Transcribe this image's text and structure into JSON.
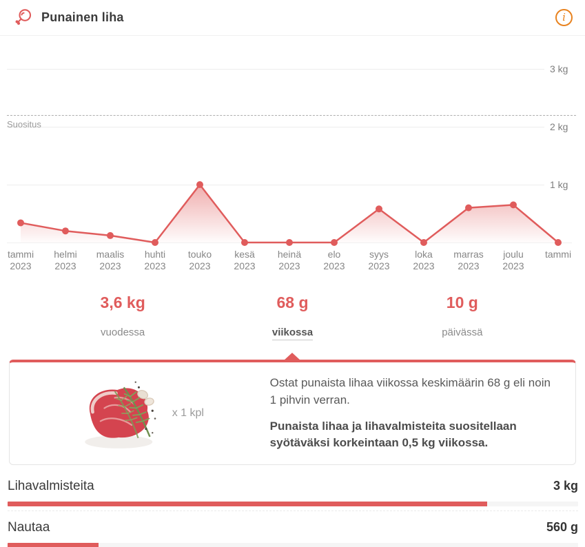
{
  "header": {
    "title": "Punainen liha"
  },
  "colors": {
    "accent_red": "#e05c5c",
    "info_orange": "#e8821e",
    "grid_gray": "#ededed",
    "reference_dash_gray": "#adadad"
  },
  "chart_data": {
    "type": "line",
    "title": "Punainen liha (red meat purchases per month)",
    "x": [
      "tammi 2023",
      "helmi 2023",
      "maalis 2023",
      "huhti 2023",
      "touko 2023",
      "kesä 2023",
      "heinä 2023",
      "elo 2023",
      "syys 2023",
      "loka 2023",
      "marras 2023",
      "joulu 2023",
      "tammi"
    ],
    "x_labels": [
      {
        "month": "tammi",
        "year": "2023"
      },
      {
        "month": "helmi",
        "year": "2023"
      },
      {
        "month": "maalis",
        "year": "2023"
      },
      {
        "month": "huhti",
        "year": "2023"
      },
      {
        "month": "touko",
        "year": "2023"
      },
      {
        "month": "kesä",
        "year": "2023"
      },
      {
        "month": "heinä",
        "year": "2023"
      },
      {
        "month": "elo",
        "year": "2023"
      },
      {
        "month": "syys",
        "year": "2023"
      },
      {
        "month": "loka",
        "year": "2023"
      },
      {
        "month": "marras",
        "year": "2023"
      },
      {
        "month": "joulu",
        "year": "2023"
      },
      {
        "month": "tammi",
        "year": ""
      }
    ],
    "values_kg": [
      0.34,
      0.2,
      0.12,
      0,
      1.0,
      0,
      0,
      0,
      0.58,
      0,
      0.6,
      0.65,
      0
    ],
    "ylabel": "",
    "xlabel": "",
    "ylim": [
      0,
      3.55
    ],
    "yticks": [
      {
        "value": 1,
        "label": "1 kg"
      },
      {
        "value": 2,
        "label": "2 kg"
      },
      {
        "value": 3,
        "label": "3 kg"
      }
    ],
    "reference_line": {
      "label": "Suositus",
      "value_kg": 2.2,
      "style": "dashed"
    },
    "grid": true,
    "line_color": "#e05c5c"
  },
  "stats": [
    {
      "value": "3,6 kg",
      "label": "vuodessa",
      "active": false
    },
    {
      "value": "68 g",
      "label": "viikossa",
      "active": true
    },
    {
      "value": "10 g",
      "label": "päivässä",
      "active": false
    }
  ],
  "detail_card": {
    "image": "steak-photo",
    "quantity_label": "x 1 kpl",
    "paragraph_normal": "Ostat punaista lihaa viikossa keskimäärin 68 g eli noin 1 pihvin verran.",
    "paragraph_bold": "Punaista lihaa ja lihavalmisteita suositellaan syötäväksi korkeintaan 0,5 kg viikossa."
  },
  "breakdown": [
    {
      "label": "Lihavalmisteita",
      "value": "3 kg",
      "percent": 84
    },
    {
      "label": "Nautaa",
      "value": "560 g",
      "percent": 16
    }
  ]
}
